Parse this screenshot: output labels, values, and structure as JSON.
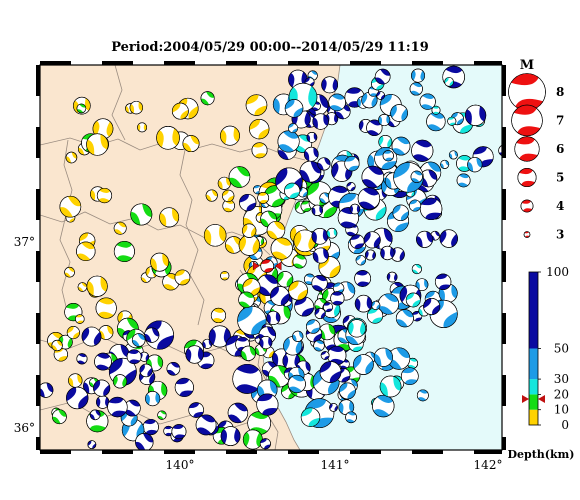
{
  "title": "Period:2004/05/29 00:00--2014/05/29 11:19",
  "map": {
    "lon_range": [
      139.05,
      142.1
    ],
    "lat_range": [
      35.9,
      37.95
    ],
    "x_ticks": [
      {
        "value": 140,
        "label": "140°"
      },
      {
        "value": 141,
        "label": "141°"
      },
      {
        "value": 142,
        "label": "142°"
      }
    ],
    "y_ticks": [
      {
        "value": 37,
        "label": "37°"
      },
      {
        "value": 36,
        "label": "36°"
      }
    ],
    "colors": {
      "land": "#fae6cf",
      "sea": "#e4fafa",
      "border": "#9a8c80",
      "frame": "#000000"
    }
  },
  "magnitude_legend": {
    "title": "M",
    "items": [
      {
        "mag": 8,
        "label": "8"
      },
      {
        "mag": 7,
        "label": "7"
      },
      {
        "mag": 6,
        "label": "6"
      },
      {
        "mag": 5,
        "label": "5"
      },
      {
        "mag": 4,
        "label": "4"
      },
      {
        "mag": 3,
        "label": "3"
      }
    ],
    "color": "#ee1111"
  },
  "depth_scale": {
    "title": "Depth(km)",
    "ticks": [
      {
        "value": 100,
        "label": "100"
      },
      {
        "value": 50,
        "label": "50"
      },
      {
        "value": 30,
        "label": "30"
      },
      {
        "value": 20,
        "label": "20"
      },
      {
        "value": 10,
        "label": "10"
      },
      {
        "value": 0,
        "label": "0"
      }
    ],
    "bands": [
      {
        "from": 0,
        "to": 10,
        "color": "#ffd200"
      },
      {
        "from": 10,
        "to": 20,
        "color": "#14dc14"
      },
      {
        "from": 20,
        "to": 30,
        "color": "#14e6dc"
      },
      {
        "from": 30,
        "to": 50,
        "color": "#1e9be6"
      },
      {
        "from": 50,
        "to": 100,
        "color": "#0a0aa0"
      }
    ],
    "marker_value": 17
  },
  "target_event": {
    "lon": 140.55,
    "lat": 36.88,
    "mag": 4.8,
    "color": "#e01010"
  }
}
